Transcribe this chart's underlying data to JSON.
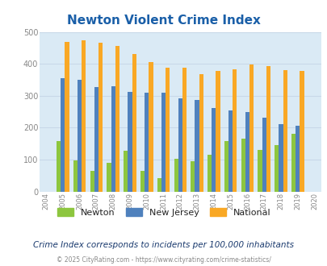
{
  "title": "Newton Violent Crime Index",
  "years": [
    2004,
    2005,
    2006,
    2007,
    2008,
    2009,
    2010,
    2011,
    2012,
    2013,
    2014,
    2015,
    2016,
    2017,
    2018,
    2019,
    2020
  ],
  "newton": [
    null,
    157,
    97,
    65,
    90,
    127,
    65,
    43,
    102,
    95,
    115,
    157,
    166,
    130,
    145,
    180,
    null
  ],
  "new_jersey": [
    null,
    355,
    350,
    328,
    330,
    312,
    310,
    310,
    292,
    288,
    261,
    255,
    248,
    231,
    210,
    207,
    null
  ],
  "national": [
    null,
    469,
    474,
    467,
    455,
    432,
    405,
    387,
    387,
    368,
    378,
    383,
    398,
    394,
    380,
    379,
    null
  ],
  "newton_color": "#8dc63f",
  "nj_color": "#4f81bd",
  "national_color": "#f9a825",
  "bg_color": "#daeaf5",
  "ylim": [
    0,
    500
  ],
  "yticks": [
    0,
    100,
    200,
    300,
    400,
    500
  ],
  "subtitle": "Crime Index corresponds to incidents per 100,000 inhabitants",
  "footer": "© 2025 CityRating.com - https://www.cityrating.com/crime-statistics/",
  "legend_labels": [
    "Newton",
    "New Jersey",
    "National"
  ],
  "bar_width": 0.25,
  "title_color": "#1a5fa8",
  "subtitle_color": "#1a3a6e",
  "footer_color": "#888888",
  "footer_link_color": "#4472c4",
  "tick_color": "#888888",
  "grid_color": "#c8d8e8"
}
